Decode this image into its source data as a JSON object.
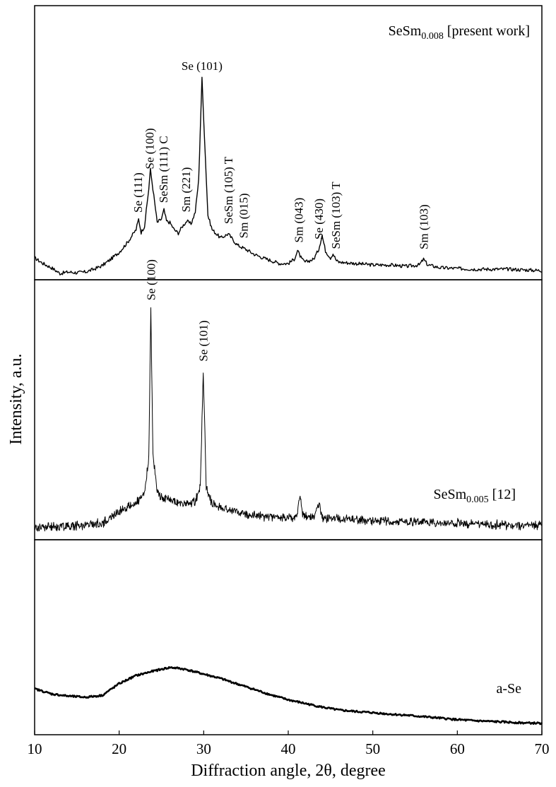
{
  "chart_data": {
    "type": "line",
    "xlabel": "Diffraction angle, 2θ, degree",
    "ylabel": "Intensity, a.u.",
    "xlim": [
      10,
      70
    ],
    "x_ticks": [
      "10",
      "20",
      "30",
      "40",
      "50",
      "60",
      "70"
    ],
    "grid": false,
    "series": [
      {
        "id": "sesm008",
        "label_main": "SeSm",
        "label_sub": "0.008",
        "label_tail": " [present work]",
        "noise": 0.5,
        "points": [
          [
            10,
            30
          ],
          [
            11,
            22
          ],
          [
            12,
            16
          ],
          [
            13,
            8
          ],
          [
            14,
            10
          ],
          [
            15,
            9
          ],
          [
            16,
            10
          ],
          [
            17,
            14
          ],
          [
            18,
            19
          ],
          [
            19,
            28
          ],
          [
            20,
            38
          ],
          [
            21,
            52
          ],
          [
            22,
            70
          ],
          [
            22.3,
            85
          ],
          [
            22.6,
            66
          ],
          [
            23,
            75
          ],
          [
            23.5,
            128
          ],
          [
            23.7,
            155
          ],
          [
            24.1,
            118
          ],
          [
            24.5,
            80
          ],
          [
            25,
            85
          ],
          [
            25.3,
            98
          ],
          [
            25.6,
            82
          ],
          [
            26,
            80
          ],
          [
            26.5,
            70
          ],
          [
            27,
            65
          ],
          [
            27.5,
            75
          ],
          [
            28,
            82
          ],
          [
            28.5,
            78
          ],
          [
            29,
            95
          ],
          [
            29.4,
            140
          ],
          [
            29.8,
            284
          ],
          [
            30.1,
            200
          ],
          [
            30.5,
            90
          ],
          [
            31,
            70
          ],
          [
            32,
            58
          ],
          [
            32.9,
            64
          ],
          [
            33.5,
            55
          ],
          [
            34,
            48
          ],
          [
            35,
            42
          ],
          [
            36,
            35
          ],
          [
            37,
            30
          ],
          [
            38,
            26
          ],
          [
            39,
            22
          ],
          [
            40,
            22
          ],
          [
            40.7,
            28
          ],
          [
            41.1,
            40
          ],
          [
            41.6,
            28
          ],
          [
            42,
            24
          ],
          [
            43,
            28
          ],
          [
            43.6,
            42
          ],
          [
            44,
            62
          ],
          [
            44.4,
            40
          ],
          [
            45,
            30
          ],
          [
            45.3,
            36
          ],
          [
            45.7,
            26
          ],
          [
            46,
            24
          ],
          [
            48,
            22
          ],
          [
            50,
            20
          ],
          [
            52,
            20
          ],
          [
            54,
            18
          ],
          [
            55.5,
            20
          ],
          [
            56,
            28
          ],
          [
            56.5,
            20
          ],
          [
            58,
            16
          ],
          [
            60,
            15
          ],
          [
            62,
            14
          ],
          [
            64,
            14
          ],
          [
            66,
            14
          ],
          [
            68,
            13
          ],
          [
            70,
            12
          ]
        ],
        "peak_labels": [
          {
            "text": "Se (101)",
            "x": 29.8,
            "rot": 0
          },
          {
            "text": "Se (111)",
            "x": 22.2,
            "rot": -90
          },
          {
            "text": "Se (100)",
            "x": 23.6,
            "rot": -90
          },
          {
            "text": "SeSm (111) C",
            "x": 25.2,
            "rot": -90
          },
          {
            "text": "Sm (221)",
            "x": 27.9,
            "rot": -90
          },
          {
            "text": "SeSm (105) T",
            "x": 32.9,
            "rot": -90
          },
          {
            "text": "Sm (015)",
            "x": 34.7,
            "rot": -90
          },
          {
            "text": "Sm (043)",
            "x": 41.2,
            "rot": -90
          },
          {
            "text": "Se (430)",
            "x": 43.6,
            "rot": -90
          },
          {
            "text": "SeSm (103) T",
            "x": 45.6,
            "rot": -90
          },
          {
            "text": "Sm (103)",
            "x": 56.0,
            "rot": -90
          }
        ]
      },
      {
        "id": "sesm005",
        "label_main": "SeSm",
        "label_sub": "0.005",
        "label_tail": " [12]",
        "noise": 1.0,
        "points": [
          [
            10,
            10
          ],
          [
            14,
            12
          ],
          [
            18,
            16
          ],
          [
            19,
            24
          ],
          [
            20,
            34
          ],
          [
            21,
            40
          ],
          [
            22,
            46
          ],
          [
            22.5,
            50
          ],
          [
            23,
            60
          ],
          [
            23.5,
            110
          ],
          [
            23.75,
            330
          ],
          [
            24,
            120
          ],
          [
            24.5,
            62
          ],
          [
            25,
            55
          ],
          [
            26,
            50
          ],
          [
            27,
            46
          ],
          [
            28,
            44
          ],
          [
            29,
            48
          ],
          [
            29.6,
            70
          ],
          [
            29.95,
            240
          ],
          [
            30.3,
            70
          ],
          [
            31,
            44
          ],
          [
            33,
            36
          ],
          [
            35,
            30
          ],
          [
            37,
            26
          ],
          [
            39,
            24
          ],
          [
            41,
            25
          ],
          [
            41.4,
            60
          ],
          [
            41.7,
            28
          ],
          [
            43,
            24
          ],
          [
            43.7,
            44
          ],
          [
            44,
            24
          ],
          [
            46,
            22
          ],
          [
            50,
            20
          ],
          [
            55,
            18
          ],
          [
            60,
            16
          ],
          [
            65,
            14
          ],
          [
            70,
            12
          ]
        ],
        "peak_labels": [
          {
            "text": "Se (100)",
            "x": 23.75,
            "rot": -90
          },
          {
            "text": "Se (101)",
            "x": 29.95,
            "rot": -90
          }
        ]
      },
      {
        "id": "ase",
        "label_main": "a-Se",
        "label_sub": "",
        "label_tail": "",
        "noise": 0.5,
        "points": [
          [
            10,
            102
          ],
          [
            12,
            88
          ],
          [
            14,
            82
          ],
          [
            16,
            79
          ],
          [
            18,
            84
          ],
          [
            20,
            116
          ],
          [
            22,
            138
          ],
          [
            24,
            150
          ],
          [
            26,
            160
          ],
          [
            27,
            158
          ],
          [
            28,
            154
          ],
          [
            30,
            142
          ],
          [
            32,
            130
          ],
          [
            34,
            115
          ],
          [
            36,
            100
          ],
          [
            38,
            85
          ],
          [
            40,
            72
          ],
          [
            42,
            62
          ],
          [
            44,
            52
          ],
          [
            46,
            44
          ],
          [
            48,
            40
          ],
          [
            50,
            37
          ],
          [
            52,
            33
          ],
          [
            54,
            30
          ],
          [
            56,
            26
          ],
          [
            58,
            22
          ],
          [
            60,
            18
          ],
          [
            62,
            15
          ],
          [
            64,
            13
          ],
          [
            66,
            11
          ],
          [
            68,
            9
          ],
          [
            70,
            8
          ]
        ],
        "peak_labels": []
      }
    ]
  }
}
